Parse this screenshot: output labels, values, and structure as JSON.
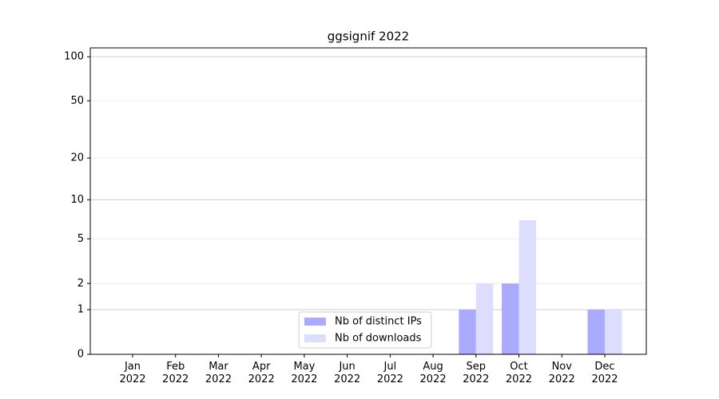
{
  "chart_data": {
    "type": "bar",
    "title": "ggsignif 2022",
    "categories": [
      "Jan\n2022",
      "Feb\n2022",
      "Mar\n2022",
      "Apr\n2022",
      "May\n2022",
      "Jun\n2022",
      "Jul\n2022",
      "Aug\n2022",
      "Sep\n2022",
      "Oct\n2022",
      "Nov\n2022",
      "Dec\n2022"
    ],
    "series": [
      {
        "name": "Nb of distinct IPs",
        "color": "#aaaaff",
        "values": [
          0,
          0,
          0,
          0,
          0,
          0,
          0,
          0,
          1,
          2,
          0,
          1
        ]
      },
      {
        "name": "Nb of downloads",
        "color": "#ddddff",
        "values": [
          0,
          0,
          0,
          0,
          0,
          0,
          0,
          0,
          2,
          7,
          0,
          1
        ]
      }
    ],
    "yscale": "log1p",
    "ylim": [
      0,
      115
    ],
    "yticks": [
      0,
      1,
      2,
      5,
      10,
      20,
      50,
      100
    ],
    "grid": true,
    "legend": "lower center"
  }
}
